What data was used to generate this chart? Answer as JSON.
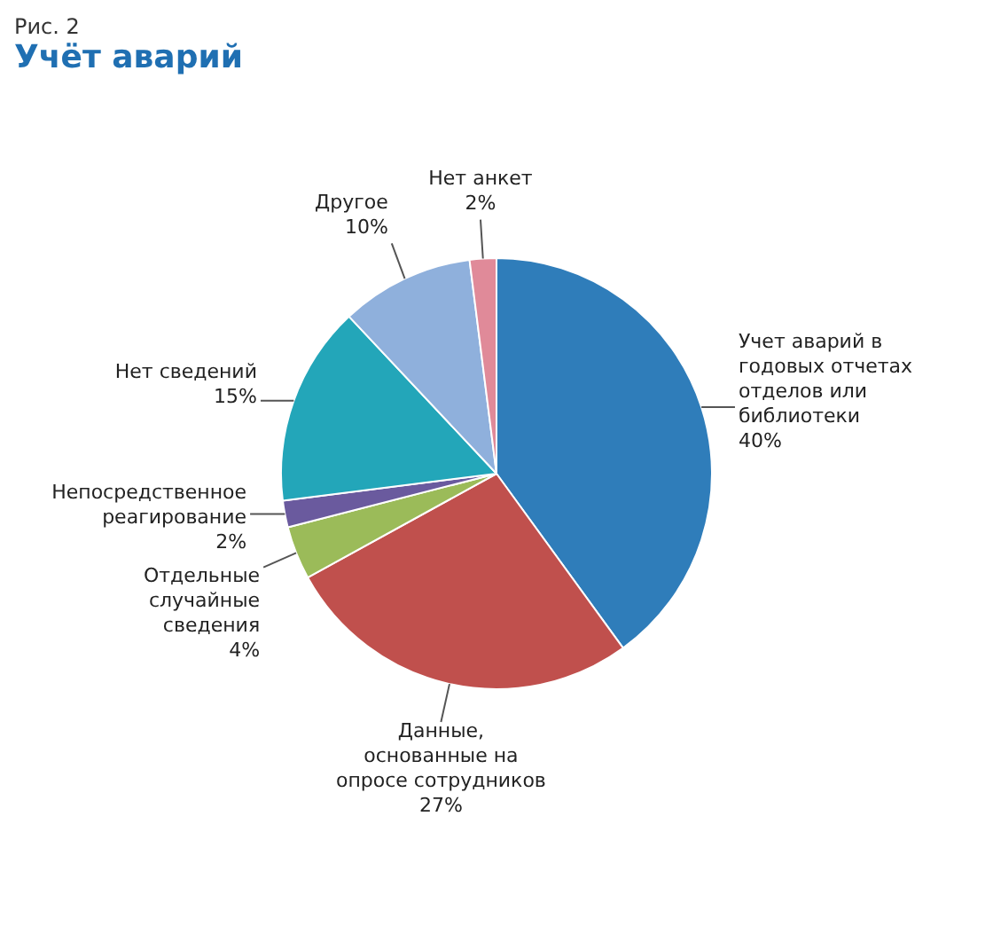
{
  "chart_data": {
    "type": "pie",
    "title": "Учёт аварий",
    "annotations": [
      "Рис. 2"
    ],
    "categories": [
      "Учет аварий в годовых отчетах отделов или библиотеки",
      "Данные, основанные на опросе сотрудников",
      "Отдельные случайные сведения",
      "Непосредственное реагирование",
      "Нет сведений",
      "Другое",
      "Нет анкет"
    ],
    "values": [
      40,
      27,
      4,
      2,
      15,
      10,
      2
    ],
    "value_labels": [
      "40%",
      "27%",
      "4%",
      "2%",
      "15%",
      "10%",
      "2%"
    ],
    "colors": [
      "#2f7dba",
      "#c0504d",
      "#9bbb59",
      "#6a5a9e",
      "#23a6b9",
      "#8fb0dc",
      "#e08a99"
    ],
    "legend": false
  }
}
